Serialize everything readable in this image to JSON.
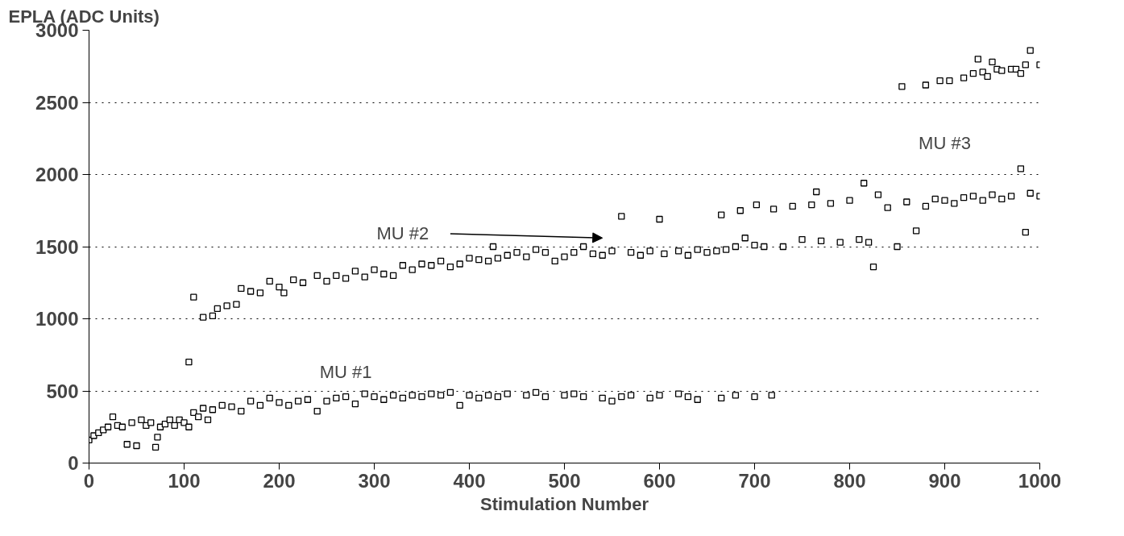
{
  "chart_data": {
    "type": "scatter",
    "ylabel": "EPLA (ADC Units)",
    "xlabel": "Stimulation Number",
    "xlim": [
      0,
      1000
    ],
    "xticks": [
      0,
      100,
      200,
      300,
      400,
      500,
      600,
      700,
      800,
      900,
      1000
    ],
    "ylim": [
      0,
      3000
    ],
    "yticks": [
      0,
      500,
      1000,
      1500,
      2000,
      2500,
      3000
    ],
    "grid": "y",
    "marker": "square",
    "series": [
      {
        "color": "#000000",
        "x": [
          0,
          5,
          10,
          15,
          20,
          25,
          30,
          35,
          40,
          45,
          50,
          55,
          60,
          65,
          70,
          72,
          75,
          80,
          85,
          90,
          95,
          100,
          105,
          110,
          115,
          120,
          125,
          130,
          140,
          150,
          160,
          170,
          180,
          190,
          200,
          210,
          220,
          230,
          240,
          250,
          260,
          270,
          280,
          290,
          300,
          310,
          320,
          330,
          340,
          350,
          360,
          370,
          380,
          390,
          400,
          410,
          420,
          430,
          440,
          460,
          470,
          480,
          500,
          510,
          520,
          540,
          550,
          560,
          570,
          590,
          600,
          620,
          630,
          640,
          665,
          680,
          700,
          718
        ],
        "values": [
          160,
          190,
          210,
          230,
          250,
          320,
          260,
          250,
          130,
          280,
          120,
          300,
          260,
          280,
          110,
          180,
          250,
          270,
          300,
          260,
          300,
          280,
          250,
          350,
          320,
          380,
          300,
          370,
          400,
          390,
          360,
          430,
          400,
          450,
          420,
          400,
          430,
          440,
          360,
          430,
          450,
          460,
          410,
          480,
          460,
          440,
          470,
          450,
          470,
          460,
          480,
          470,
          490,
          400,
          470,
          450,
          470,
          460,
          480,
          470,
          490,
          460,
          470,
          480,
          460,
          450,
          430,
          460,
          470,
          450,
          470,
          480,
          460,
          440,
          450,
          470,
          460,
          470
        ]
      },
      {
        "color": "#000000",
        "x": [
          105,
          110,
          120,
          130,
          135,
          145,
          155,
          160,
          170,
          180,
          190,
          200,
          205,
          215,
          225,
          240,
          250,
          260,
          270,
          280,
          290,
          300,
          310,
          320,
          330,
          340,
          350,
          360,
          370,
          380,
          390,
          400,
          410,
          420,
          425,
          430,
          440,
          450,
          460,
          470,
          480,
          490,
          500,
          510,
          520,
          530,
          540,
          550,
          560,
          570,
          580,
          590,
          600,
          605,
          620,
          630,
          640,
          650,
          660,
          665,
          670,
          680,
          685,
          690,
          700,
          702,
          710,
          720,
          730,
          740,
          750,
          760,
          765,
          770,
          780,
          790,
          800,
          810,
          815,
          820,
          825,
          830,
          840,
          850,
          860,
          870,
          880,
          890,
          900,
          910,
          920,
          930,
          940,
          950,
          960,
          970,
          980,
          985,
          990,
          1000
        ],
        "values": [
          700,
          1150,
          1010,
          1020,
          1070,
          1090,
          1100,
          1210,
          1190,
          1180,
          1260,
          1220,
          1180,
          1270,
          1250,
          1300,
          1260,
          1300,
          1280,
          1330,
          1290,
          1340,
          1310,
          1300,
          1370,
          1340,
          1380,
          1370,
          1400,
          1360,
          1380,
          1420,
          1410,
          1400,
          1500,
          1420,
          1440,
          1460,
          1430,
          1480,
          1460,
          1400,
          1430,
          1460,
          1500,
          1450,
          1440,
          1470,
          1710,
          1460,
          1440,
          1470,
          1690,
          1450,
          1470,
          1440,
          1480,
          1460,
          1470,
          1720,
          1480,
          1500,
          1750,
          1560,
          1510,
          1790,
          1500,
          1760,
          1500,
          1780,
          1550,
          1790,
          1880,
          1540,
          1800,
          1530,
          1820,
          1550,
          1940,
          1530,
          1360,
          1860,
          1770,
          1500,
          1810,
          1610,
          1780,
          1830,
          1820,
          1800,
          1840,
          1850,
          1820,
          1860,
          1830,
          1850,
          2040,
          1600,
          1870,
          1850
        ]
      },
      {
        "color": "#000000",
        "x": [
          855,
          880,
          895,
          905,
          920,
          930,
          935,
          940,
          945,
          950,
          955,
          960,
          970,
          975,
          980,
          985,
          990,
          1000
        ],
        "values": [
          2610,
          2620,
          2650,
          2650,
          2670,
          2700,
          2800,
          2710,
          2680,
          2780,
          2730,
          2720,
          2730,
          2730,
          2700,
          2760,
          2860,
          2760
        ]
      }
    ],
    "annotations": [
      "MU #1",
      "MU #2",
      "MU #3"
    ]
  }
}
